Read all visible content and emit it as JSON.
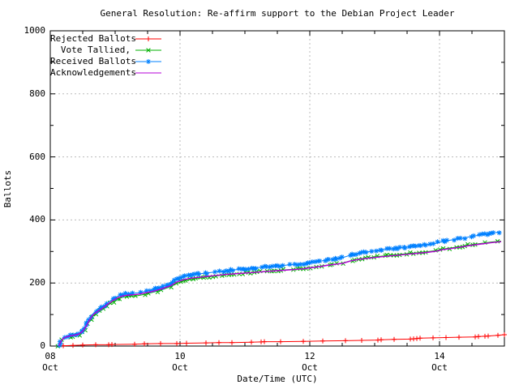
{
  "title": "General Resolution: Re-affirm support to the Debian Project Leader",
  "chart_data": {
    "type": "line",
    "title": "General Resolution: Re-affirm support to the Debian Project Leader",
    "xlabel": "Date/Time (UTC)",
    "ylabel": "Ballots",
    "x_unit": "days since 08 Oct 00:00 UTC",
    "xlim_days": [
      0,
      7
    ],
    "ylim": [
      0,
      1000
    ],
    "grid": "on",
    "grid_color": "#bbbbbb",
    "border_color": "#000000",
    "legend_position": "top-left-inside",
    "x_ticks": [
      {
        "day": 0,
        "label": "08\nOct"
      },
      {
        "day": 2,
        "label": "10\nOct"
      },
      {
        "day": 4,
        "label": "12\nOct"
      },
      {
        "day": 6,
        "label": "14\nOct"
      }
    ],
    "x_minor_step_days": 0.5,
    "y_ticks": [
      0,
      200,
      400,
      600,
      800,
      1000
    ],
    "y_minor_step": 100,
    "series": [
      {
        "name": "Rejected Ballots",
        "color": "#ff0000",
        "marker": "plus",
        "marker_mode": "points",
        "points": [
          [
            0.2,
            1
          ],
          [
            0.35,
            2
          ],
          [
            0.5,
            3
          ],
          [
            0.7,
            4
          ],
          [
            0.9,
            4
          ],
          [
            0.95,
            5
          ],
          [
            1.3,
            6
          ],
          [
            1.45,
            7
          ],
          [
            1.7,
            8
          ],
          [
            1.95,
            8
          ],
          [
            2.1,
            9
          ],
          [
            2.4,
            10
          ],
          [
            2.6,
            11
          ],
          [
            2.8,
            11
          ],
          [
            3.1,
            12
          ],
          [
            3.25,
            13
          ],
          [
            3.3,
            14
          ],
          [
            3.55,
            14
          ],
          [
            3.9,
            15
          ],
          [
            4.2,
            16
          ],
          [
            4.55,
            17
          ],
          [
            4.8,
            18
          ],
          [
            5.05,
            19
          ],
          [
            5.1,
            20
          ],
          [
            5.3,
            21
          ],
          [
            5.55,
            22
          ],
          [
            5.6,
            23
          ],
          [
            5.65,
            24
          ],
          [
            5.7,
            25
          ],
          [
            5.9,
            26
          ],
          [
            6.1,
            27
          ],
          [
            6.3,
            28
          ],
          [
            6.55,
            29
          ],
          [
            6.6,
            30
          ],
          [
            6.7,
            31
          ],
          [
            6.75,
            32
          ],
          [
            6.9,
            34
          ],
          [
            7.0,
            36
          ]
        ]
      },
      {
        "name": "Vote Tallied,",
        "color": "#00b000",
        "marker": "x",
        "marker_mode": "dense",
        "points": [
          [
            0.13,
            0
          ],
          [
            0.16,
            11
          ],
          [
            0.19,
            20
          ],
          [
            0.23,
            26
          ],
          [
            0.3,
            30
          ],
          [
            0.38,
            33
          ],
          [
            0.44,
            36
          ],
          [
            0.5,
            45
          ],
          [
            0.55,
            59
          ],
          [
            0.6,
            78
          ],
          [
            0.65,
            93
          ],
          [
            0.7,
            102
          ],
          [
            0.76,
            110
          ],
          [
            0.83,
            120
          ],
          [
            0.9,
            131
          ],
          [
            0.97,
            141
          ],
          [
            1.04,
            149
          ],
          [
            1.12,
            155
          ],
          [
            1.22,
            158
          ],
          [
            1.35,
            160
          ],
          [
            1.45,
            164
          ],
          [
            1.55,
            169
          ],
          [
            1.65,
            174
          ],
          [
            1.75,
            181
          ],
          [
            1.85,
            188
          ],
          [
            1.95,
            199
          ],
          [
            2.05,
            206
          ],
          [
            2.15,
            211
          ],
          [
            2.3,
            216
          ],
          [
            2.5,
            221
          ],
          [
            2.7,
            226
          ],
          [
            2.9,
            230
          ],
          [
            3.1,
            233
          ],
          [
            3.3,
            237
          ],
          [
            3.5,
            240
          ],
          [
            3.7,
            243
          ],
          [
            3.9,
            246
          ],
          [
            4.0,
            249
          ],
          [
            4.15,
            253
          ],
          [
            4.3,
            258
          ],
          [
            4.5,
            263
          ],
          [
            4.65,
            272
          ],
          [
            4.8,
            277
          ],
          [
            5.0,
            283
          ],
          [
            5.2,
            287
          ],
          [
            5.4,
            291
          ],
          [
            5.6,
            295
          ],
          [
            5.8,
            299
          ],
          [
            5.95,
            303
          ],
          [
            6.05,
            308
          ],
          [
            6.2,
            312
          ],
          [
            6.35,
            317
          ],
          [
            6.5,
            322
          ],
          [
            6.65,
            326
          ],
          [
            6.8,
            330
          ],
          [
            6.95,
            333
          ]
        ]
      },
      {
        "name": "Received Ballots",
        "color": "#0080ff",
        "marker": "star",
        "marker_mode": "dense",
        "points": [
          [
            0.13,
            1
          ],
          [
            0.16,
            14
          ],
          [
            0.19,
            24
          ],
          [
            0.23,
            30
          ],
          [
            0.3,
            34
          ],
          [
            0.38,
            37
          ],
          [
            0.44,
            40
          ],
          [
            0.5,
            50
          ],
          [
            0.55,
            65
          ],
          [
            0.6,
            85
          ],
          [
            0.65,
            101
          ],
          [
            0.7,
            110
          ],
          [
            0.76,
            118
          ],
          [
            0.83,
            128
          ],
          [
            0.9,
            140
          ],
          [
            0.97,
            150
          ],
          [
            1.04,
            158
          ],
          [
            1.12,
            164
          ],
          [
            1.22,
            167
          ],
          [
            1.35,
            169
          ],
          [
            1.45,
            173
          ],
          [
            1.55,
            178
          ],
          [
            1.65,
            183
          ],
          [
            1.75,
            190
          ],
          [
            1.85,
            198
          ],
          [
            1.95,
            212
          ],
          [
            2.05,
            220
          ],
          [
            2.15,
            225
          ],
          [
            2.3,
            229
          ],
          [
            2.5,
            234
          ],
          [
            2.7,
            239
          ],
          [
            2.9,
            243
          ],
          [
            3.1,
            247
          ],
          [
            3.3,
            251
          ],
          [
            3.5,
            254
          ],
          [
            3.7,
            258
          ],
          [
            3.9,
            261
          ],
          [
            4.0,
            264
          ],
          [
            4.15,
            269
          ],
          [
            4.3,
            274
          ],
          [
            4.5,
            280
          ],
          [
            4.65,
            290
          ],
          [
            4.8,
            296
          ],
          [
            5.0,
            302
          ],
          [
            5.2,
            307
          ],
          [
            5.4,
            312
          ],
          [
            5.6,
            316
          ],
          [
            5.8,
            321
          ],
          [
            5.95,
            326
          ],
          [
            6.05,
            332
          ],
          [
            6.2,
            337
          ],
          [
            6.35,
            342
          ],
          [
            6.5,
            348
          ],
          [
            6.65,
            353
          ],
          [
            6.8,
            358
          ],
          [
            6.95,
            363
          ]
        ]
      },
      {
        "name": "Acknowledgements",
        "color": "#b400d8",
        "marker": "none",
        "marker_mode": "none",
        "points": [
          [
            0.13,
            0
          ],
          [
            0.16,
            13
          ],
          [
            0.19,
            22
          ],
          [
            0.23,
            28
          ],
          [
            0.3,
            32
          ],
          [
            0.38,
            35
          ],
          [
            0.44,
            38
          ],
          [
            0.5,
            47
          ],
          [
            0.55,
            62
          ],
          [
            0.6,
            81
          ],
          [
            0.65,
            97
          ],
          [
            0.7,
            106
          ],
          [
            0.76,
            114
          ],
          [
            0.83,
            124
          ],
          [
            0.9,
            135
          ],
          [
            0.97,
            145
          ],
          [
            1.04,
            153
          ],
          [
            1.12,
            159
          ],
          [
            1.22,
            162
          ],
          [
            1.35,
            164
          ],
          [
            1.45,
            168
          ],
          [
            1.55,
            172
          ],
          [
            1.65,
            177
          ],
          [
            1.75,
            184
          ],
          [
            1.85,
            191
          ],
          [
            1.95,
            203
          ],
          [
            2.05,
            210
          ],
          [
            2.15,
            215
          ],
          [
            2.3,
            218
          ],
          [
            2.5,
            223
          ],
          [
            2.7,
            227
          ],
          [
            2.9,
            230
          ],
          [
            3.1,
            233
          ],
          [
            3.3,
            236
          ],
          [
            3.5,
            239
          ],
          [
            3.7,
            242
          ],
          [
            3.9,
            245
          ],
          [
            4.0,
            248
          ],
          [
            4.15,
            252
          ],
          [
            4.3,
            257
          ],
          [
            4.5,
            262
          ],
          [
            4.65,
            271
          ],
          [
            4.8,
            276
          ],
          [
            5.0,
            281
          ],
          [
            5.2,
            285
          ],
          [
            5.4,
            289
          ],
          [
            5.6,
            293
          ],
          [
            5.8,
            297
          ],
          [
            5.95,
            301
          ],
          [
            6.05,
            306
          ],
          [
            6.2,
            310
          ],
          [
            6.35,
            315
          ],
          [
            6.5,
            320
          ],
          [
            6.65,
            324
          ],
          [
            6.8,
            328
          ],
          [
            6.95,
            331
          ]
        ]
      }
    ]
  }
}
